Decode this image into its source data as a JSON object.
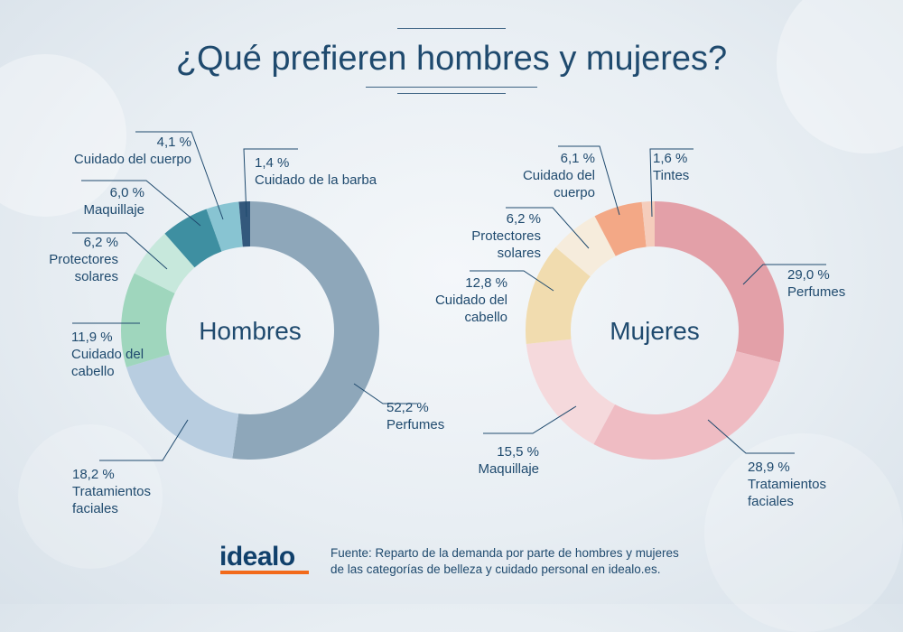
{
  "title": "¿Qué prefieren hombres y mujeres?",
  "footer": {
    "logo": "idealo",
    "source_line1": "Fuente: Reparto de la demanda por parte de hombres y mujeres",
    "source_line2": "de las categorías de belleza y cuidado personal en idealo.es."
  },
  "chart_data": [
    {
      "type": "pie",
      "variant": "donut",
      "title": "Hombres",
      "slices": [
        {
          "label": "Perfumes",
          "value": 52.2,
          "value_text": "52,2 %",
          "color": "#8ea7ba"
        },
        {
          "label": "Tratamientos faciales",
          "value": 18.2,
          "value_text": "18,2 %",
          "color": "#b8cde0"
        },
        {
          "label": "Cuidado del cabello",
          "value": 11.9,
          "value_text": "11,9 %",
          "color": "#9fd6bd"
        },
        {
          "label": "Protectores solares",
          "value": 6.2,
          "value_text": "6,2 %",
          "color": "#c7e8dc"
        },
        {
          "label": "Maquillaje",
          "value": 6.0,
          "value_text": "6,0 %",
          "color": "#3e8fa1"
        },
        {
          "label": "Cuidado del cuerpo",
          "value": 4.1,
          "value_text": "4,1 %",
          "color": "#88c4d2"
        },
        {
          "label": "Cuidado de la barba",
          "value": 1.4,
          "value_text": "1,4 %",
          "color": "#33587c"
        }
      ]
    },
    {
      "type": "pie",
      "variant": "donut",
      "title": "Mujeres",
      "slices": [
        {
          "label": "Perfumes",
          "value": 29.0,
          "value_text": "29,0 %",
          "color": "#e3a0a8"
        },
        {
          "label": "Tratamientos faciales",
          "value": 28.9,
          "value_text": "28,9 %",
          "color": "#efbcc3"
        },
        {
          "label": "Maquillaje",
          "value": 15.5,
          "value_text": "15,5 %",
          "color": "#f5d9dc"
        },
        {
          "label": "Cuidado del cabello",
          "value": 12.8,
          "value_text": "12,8 %",
          "color": "#f1dcaf"
        },
        {
          "label": "Protectores solares",
          "value": 6.2,
          "value_text": "6,2 %",
          "color": "#f6ecdc"
        },
        {
          "label": "Cuidado del cuerpo",
          "value": 6.1,
          "value_text": "6,1 %",
          "color": "#f3a886"
        },
        {
          "label": "Tintes",
          "value": 1.6,
          "value_text": "1,6 %",
          "color": "#f5cdbc"
        }
      ]
    }
  ]
}
